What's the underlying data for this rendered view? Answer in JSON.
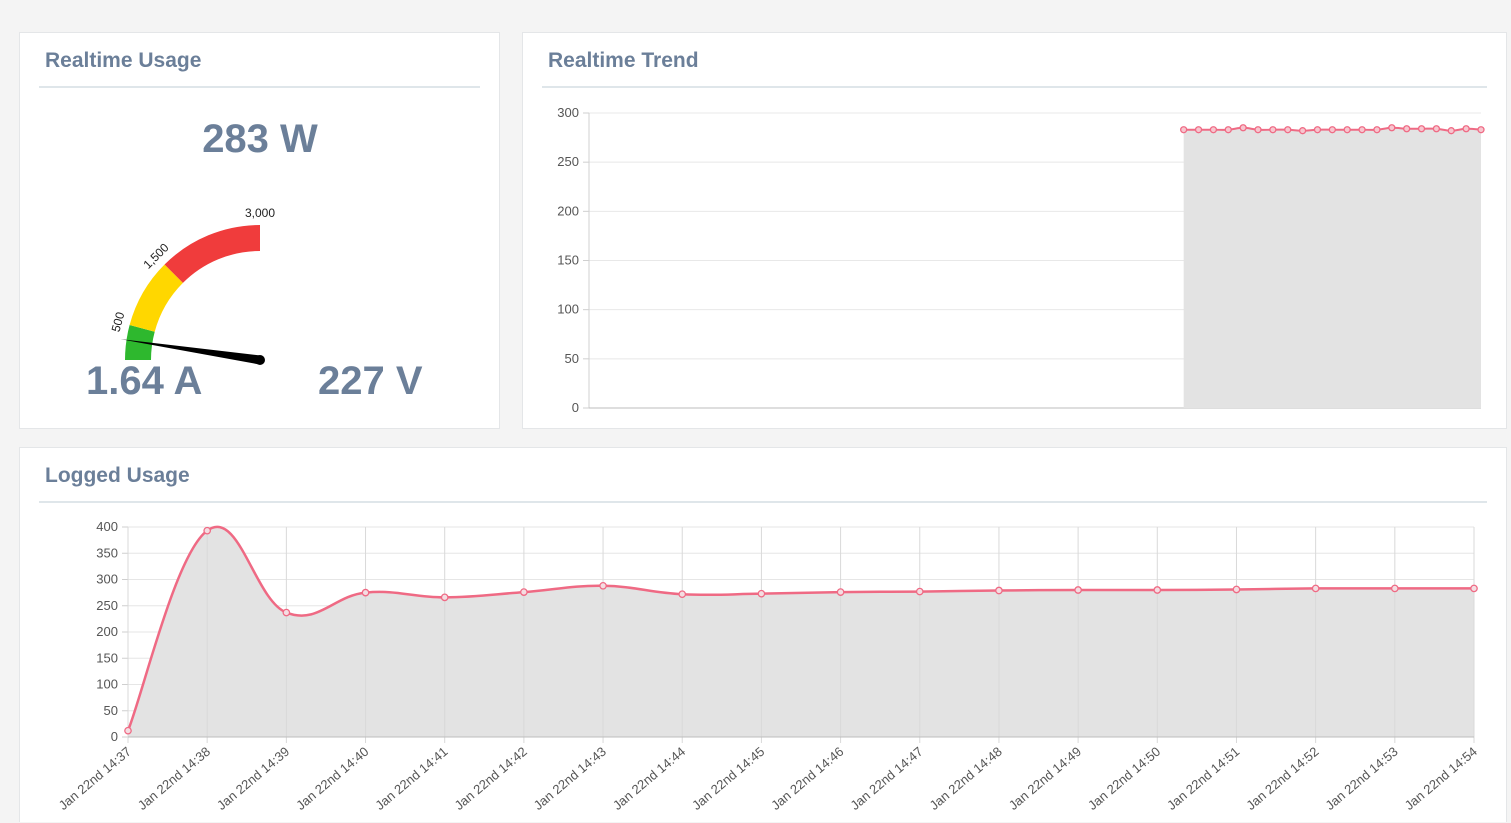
{
  "realtime_usage": {
    "title": "Realtime Usage",
    "power": "283 W",
    "current": "1.64 A",
    "voltage": "227 V",
    "gauge": {
      "min": 0,
      "max": 3000,
      "value": 283,
      "tick_labels": [
        "500",
        "1,500",
        "3,000"
      ],
      "bands": [
        {
          "from": 0,
          "to": 500,
          "color": "#2eb82e"
        },
        {
          "from": 500,
          "to": 1500,
          "color": "#ffd700"
        },
        {
          "from": 1500,
          "to": 3000,
          "color": "#f03c3c"
        }
      ]
    }
  },
  "realtime_trend": {
    "title": "Realtime Trend",
    "chart_data": {
      "type": "area",
      "ylim": [
        0,
        300
      ],
      "y_ticks": [
        "300",
        "250",
        "200",
        "150",
        "100",
        "50",
        "0"
      ],
      "x_slots": 60,
      "first_slot": 40,
      "values": [
        283,
        283,
        283,
        283,
        285,
        283,
        283,
        283,
        282,
        283,
        283,
        283,
        283,
        283,
        285,
        284,
        284,
        284,
        282,
        284,
        283
      ],
      "line_color": "#ef6a84",
      "fill_color": "#e3e3e3"
    }
  },
  "logged_usage": {
    "title": "Logged Usage",
    "chart_data": {
      "type": "area",
      "ylim": [
        0,
        400
      ],
      "y_ticks": [
        "400",
        "350",
        "300",
        "250",
        "200",
        "150",
        "100",
        "50",
        "0"
      ],
      "categories": [
        "Jan 22nd 14:37",
        "Jan 22nd 14:38",
        "Jan 22nd 14:39",
        "Jan 22nd 14:40",
        "Jan 22nd 14:41",
        "Jan 22nd 14:42",
        "Jan 22nd 14:43",
        "Jan 22nd 14:44",
        "Jan 22nd 14:45",
        "Jan 22nd 14:46",
        "Jan 22nd 14:47",
        "Jan 22nd 14:48",
        "Jan 22nd 14:49",
        "Jan 22nd 14:50",
        "Jan 22nd 14:51",
        "Jan 22nd 14:52",
        "Jan 22nd 14:53",
        "Jan 22nd 14:54"
      ],
      "values": [
        12,
        393,
        237,
        275,
        266,
        276,
        288,
        272,
        273,
        276,
        277,
        279,
        280,
        280,
        281,
        283,
        283,
        283
      ],
      "line_color": "#ef6a84",
      "fill_color": "#e3e3e3"
    }
  }
}
